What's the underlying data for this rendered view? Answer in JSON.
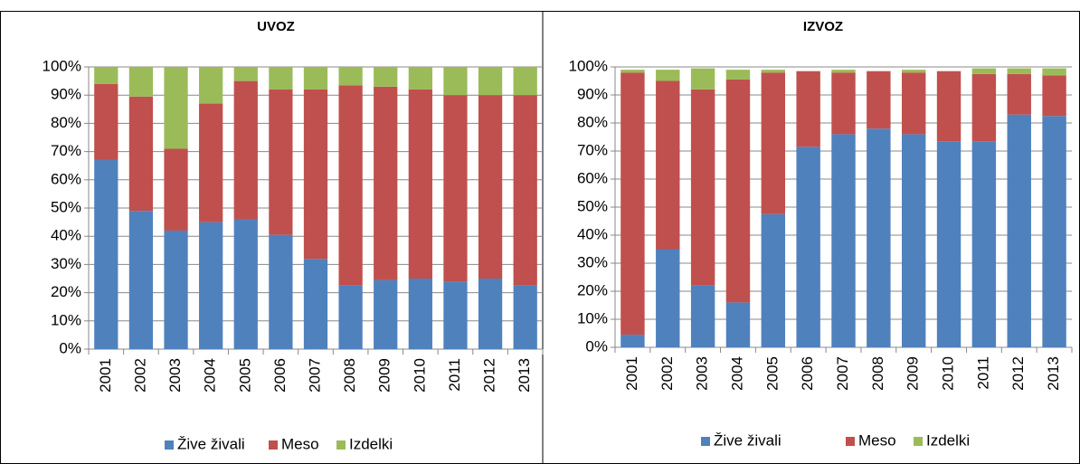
{
  "chart_data": [
    {
      "type": "bar",
      "stacked": true,
      "title": "UVOZ",
      "categories": [
        "2001",
        "2002",
        "2003",
        "2004",
        "2005",
        "2006",
        "2007",
        "2008",
        "2009",
        "2010",
        "2011",
        "2012",
        "2013"
      ],
      "series": [
        {
          "name": "Žive živali",
          "color": "#4f81bd",
          "values": [
            67,
            49,
            42,
            45,
            46,
            40.5,
            32,
            22.5,
            24.5,
            25,
            24,
            25,
            22.5
          ]
        },
        {
          "name": "Meso",
          "color": "#c0504d",
          "values": [
            27,
            40.5,
            29,
            42,
            49,
            51.5,
            60,
            71,
            68.5,
            67,
            66,
            65,
            67.5
          ]
        },
        {
          "name": "Izdelki",
          "color": "#9bbb59",
          "values": [
            6,
            10.5,
            29,
            13,
            5,
            8,
            8,
            6.5,
            7,
            8,
            10,
            10,
            10
          ]
        }
      ],
      "ylim": [
        0,
        100
      ],
      "yticks": [
        {
          "value": 0,
          "label": "0%"
        },
        {
          "value": 10,
          "label": "10%"
        },
        {
          "value": 20,
          "label": "20%"
        },
        {
          "value": 30,
          "label": "30%"
        },
        {
          "value": 40,
          "label": "40%"
        },
        {
          "value": 50,
          "label": "50%"
        },
        {
          "value": 60,
          "label": "60%"
        },
        {
          "value": 70,
          "label": "70%"
        },
        {
          "value": 80,
          "label": "80%"
        },
        {
          "value": 90,
          "label": "90%"
        },
        {
          "value": 100,
          "label": "100%"
        }
      ],
      "grid": true,
      "legend": "bottom"
    },
    {
      "type": "bar",
      "stacked": true,
      "title": "IZVOZ",
      "categories": [
        "2001",
        "2002",
        "2003",
        "2004",
        "2005",
        "2006",
        "2007",
        "2008",
        "2009",
        "2010",
        "2011",
        "2012",
        "2013"
      ],
      "series": [
        {
          "name": "Žive živali",
          "color": "#4f81bd",
          "values": [
            4.5,
            35,
            22,
            16,
            47.5,
            71.5,
            76,
            78,
            76,
            73.5,
            73.5,
            83,
            82.5
          ]
        },
        {
          "name": "Meso",
          "color": "#c0504d",
          "values": [
            93.5,
            60,
            70,
            79.5,
            50.5,
            27,
            22,
            20.5,
            22,
            25,
            24,
            14.5,
            14.5
          ]
        },
        {
          "name": "Izdelki",
          "color": "#9bbb59",
          "values": [
            1,
            4,
            7.5,
            3.5,
            1,
            0,
            1,
            0,
            1,
            0,
            2,
            2,
            2.5
          ]
        }
      ],
      "ylim": [
        0,
        100
      ],
      "yticks": [
        {
          "value": 0,
          "label": "0%"
        },
        {
          "value": 10,
          "label": "10%"
        },
        {
          "value": 20,
          "label": "20%"
        },
        {
          "value": 30,
          "label": "30%"
        },
        {
          "value": 40,
          "label": "40%"
        },
        {
          "value": 50,
          "label": "50%"
        },
        {
          "value": 60,
          "label": "60%"
        },
        {
          "value": 70,
          "label": "70%"
        },
        {
          "value": 80,
          "label": "80%"
        },
        {
          "value": 90,
          "label": "90%"
        },
        {
          "value": 100,
          "label": "100%"
        }
      ],
      "grid": true,
      "legend": "bottom"
    }
  ]
}
